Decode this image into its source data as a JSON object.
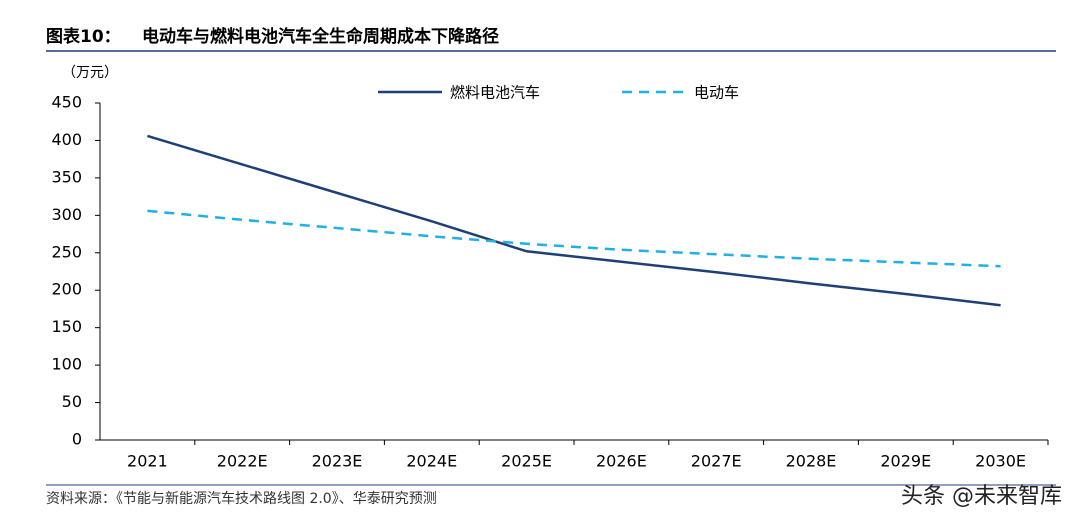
{
  "chart_data": {
    "type": "line",
    "label": "图表10：",
    "title": "电动车与燃料电池汽车全生命周期成本下降路径",
    "y_unit": "（万元）",
    "categories": [
      "2021",
      "2022E",
      "2023E",
      "2024E",
      "2025E",
      "2026E",
      "2027E",
      "2028E",
      "2029E",
      "2030E"
    ],
    "series": [
      {
        "name": "燃料电池汽车",
        "color": "#1f3f7a",
        "dash": false,
        "values": [
          406,
          368,
          330,
          292,
          252,
          238,
          224,
          209,
          195,
          180
        ]
      },
      {
        "name": "电动车",
        "color": "#1fb0e6",
        "dash": true,
        "values": [
          306,
          294,
          283,
          272,
          262,
          254,
          248,
          242,
          237,
          232
        ]
      }
    ],
    "ylim": [
      0,
      450
    ],
    "yticks": [
      0,
      50,
      100,
      150,
      200,
      250,
      300,
      350,
      400,
      450
    ],
    "source": "资料来源：《节能与新能源汽车技术路线图 2.0》、华泰研究预测",
    "watermark": "头条 @未来智库"
  }
}
